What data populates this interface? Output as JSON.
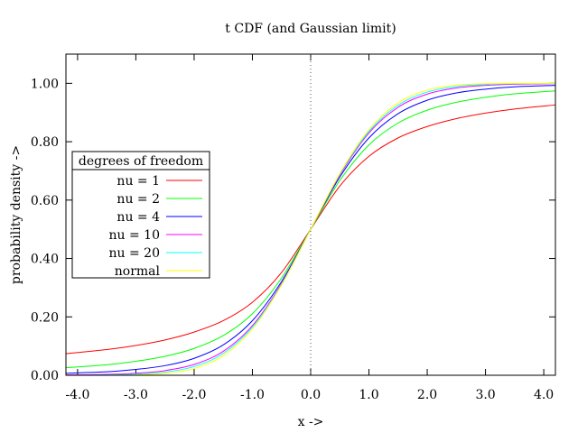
{
  "chart_data": {
    "type": "line",
    "title": "t CDF (and Gaussian limit)",
    "xlabel": "x ->",
    "ylabel": "probability density ->",
    "xlim": [
      -4.2,
      4.2
    ],
    "ylim": [
      0.0,
      1.1
    ],
    "x_ticks": [
      -4.0,
      -3.0,
      -2.0,
      -1.0,
      0.0,
      1.0,
      2.0,
      3.0,
      4.0
    ],
    "x_tick_labels": [
      "-4.0",
      "-3.0",
      "-2.0",
      "-1.0",
      "0.0",
      "1.0",
      "2.0",
      "3.0",
      "4.0"
    ],
    "y_ticks": [
      0.0,
      0.2,
      0.4,
      0.6,
      0.8,
      1.0
    ],
    "y_tick_labels": [
      "0.00",
      "0.20",
      "0.40",
      "0.60",
      "0.80",
      "1.00"
    ],
    "grid": false,
    "reference_line": {
      "x": 0.0,
      "style": "dotted"
    },
    "legend": {
      "title": "degrees of freedom",
      "placement": "left-middle"
    },
    "x": [
      -4.2,
      -3.5,
      -3.0,
      -2.5,
      -2.0,
      -1.5,
      -1.0,
      -0.5,
      0.0,
      0.5,
      1.0,
      1.5,
      2.0,
      2.5,
      3.0,
      3.5,
      4.2
    ],
    "series": [
      {
        "name": "nu = 1",
        "color": "#ff0000",
        "values": [
          0.074,
          0.088,
          0.102,
          0.121,
          0.148,
          0.187,
          0.25,
          0.352,
          0.5,
          0.648,
          0.75,
          0.813,
          0.852,
          0.879,
          0.898,
          0.912,
          0.926
        ]
      },
      {
        "name": "nu = 2",
        "color": "#00ff00",
        "values": [
          0.026,
          0.036,
          0.048,
          0.065,
          0.092,
          0.136,
          0.211,
          0.333,
          0.5,
          0.667,
          0.789,
          0.864,
          0.908,
          0.935,
          0.952,
          0.964,
          0.974
        ]
      },
      {
        "name": "nu = 4",
        "color": "#0000ff",
        "values": [
          0.007,
          0.012,
          0.02,
          0.033,
          0.058,
          0.104,
          0.187,
          0.321,
          0.5,
          0.679,
          0.813,
          0.896,
          0.942,
          0.967,
          0.98,
          0.988,
          0.993
        ]
      },
      {
        "name": "nu = 10",
        "color": "#ff00ff",
        "values": [
          0.001,
          0.003,
          0.007,
          0.016,
          0.037,
          0.082,
          0.17,
          0.314,
          0.5,
          0.686,
          0.83,
          0.918,
          0.963,
          0.984,
          0.993,
          0.997,
          0.999
        ]
      },
      {
        "name": "nu = 20",
        "color": "#00ffff",
        "values": [
          0.0002,
          0.001,
          0.004,
          0.011,
          0.03,
          0.075,
          0.165,
          0.311,
          0.5,
          0.689,
          0.835,
          0.925,
          0.97,
          0.989,
          0.996,
          0.999,
          0.9998
        ]
      },
      {
        "name": "normal",
        "color": "#ffff00",
        "values": [
          1e-05,
          0.0002,
          0.0013,
          0.0062,
          0.023,
          0.067,
          0.159,
          0.309,
          0.5,
          0.691,
          0.841,
          0.933,
          0.977,
          0.994,
          0.9987,
          0.9998,
          0.99999
        ]
      }
    ]
  }
}
